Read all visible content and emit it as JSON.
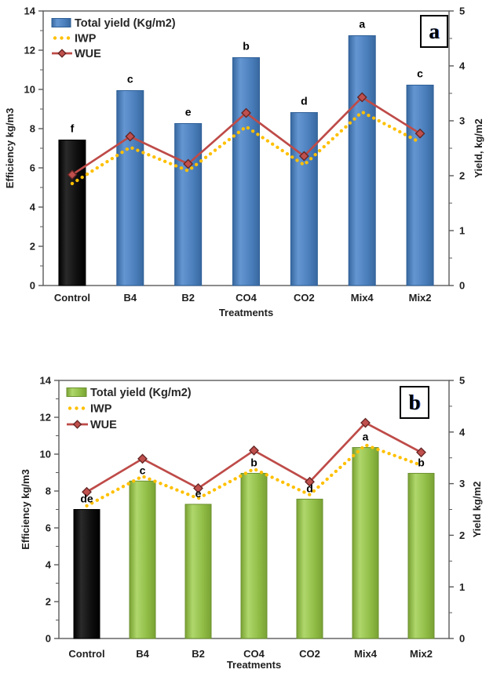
{
  "colors": {
    "blue_bar": {
      "dark": "#38689F",
      "light": "#6496D2",
      "main": "#4A7EBB",
      "stroke": "#2E5F97"
    },
    "green_bar": {
      "dark": "#79A233",
      "light": "#AFD76C",
      "main": "#8FBC45",
      "stroke": "#6C9130"
    },
    "black_bar": {
      "dark": "#000000",
      "light": "#2A2A2A",
      "main": "#0E0E0E",
      "stroke": "#000000"
    },
    "iwp_dots": "#FFC000",
    "wue_line": "#BE4B48",
    "wue_marker_fill": "#C0504D",
    "wue_marker_stroke": "#622423",
    "text": "#1F1F1F",
    "frame": "#5A5A5A"
  },
  "chart_data": [
    {
      "panel": "a",
      "corner_label": "a",
      "type": "bar+line combo",
      "categories": [
        "Control",
        "B4",
        "B2",
        "CO4",
        "CO2",
        "Mix4",
        "Mix2"
      ],
      "x_title": "Treatments",
      "left_axis": {
        "title": "Efficiency kg/m3",
        "range": [
          0,
          14
        ],
        "ticks": [
          0,
          2,
          4,
          6,
          8,
          10,
          12,
          14
        ],
        "minor_step": 1
      },
      "right_axis": {
        "title": "Yield, kg/m2",
        "range": [
          0,
          5
        ],
        "ticks": [
          0,
          1,
          2,
          3,
          4,
          5
        ],
        "minor_step": 0.5
      },
      "series": [
        {
          "name": "Total yield (Kg/m2)",
          "type": "bar",
          "axis": "right",
          "values": [
            2.65,
            3.55,
            2.95,
            4.15,
            3.15,
            4.55,
            3.65
          ],
          "note_first_bar_black": true,
          "palette": "blue"
        },
        {
          "name": "IWP",
          "type": "dotted_line",
          "axis": "left",
          "values": [
            5.2,
            7.05,
            5.85,
            8.1,
            6.15,
            8.85,
            7.3
          ]
        },
        {
          "name": "WUE",
          "type": "line_diamond",
          "axis": "left",
          "values": [
            5.65,
            7.6,
            6.2,
            8.8,
            6.6,
            9.6,
            7.75
          ]
        }
      ],
      "significance_letters": [
        "f",
        "c",
        "e",
        "b",
        "d",
        "a",
        "c"
      ],
      "legend_position": "top-left inside",
      "grid": "off"
    },
    {
      "panel": "b",
      "corner_label": "b",
      "type": "bar+line combo",
      "categories": [
        "Control",
        "B4",
        "B2",
        "CO4",
        "CO2",
        "Mix4",
        "Mix2"
      ],
      "x_title": "Treatments",
      "left_axis": {
        "title": "Efficiency kg/m3",
        "range": [
          0,
          14
        ],
        "ticks": [
          0,
          2,
          4,
          6,
          8,
          10,
          12,
          14
        ],
        "minor_step": 1
      },
      "right_axis": {
        "title": "Yield kg/m2",
        "range": [
          0,
          5
        ],
        "ticks": [
          0,
          1,
          2,
          3,
          4,
          5
        ],
        "minor_step": 0.5
      },
      "series": [
        {
          "name": "Total yield (Kg/m2)",
          "type": "bar",
          "axis": "right",
          "values": [
            2.5,
            3.05,
            2.6,
            3.2,
            2.7,
            3.7,
            3.2
          ],
          "note_first_bar_black": true,
          "palette": "green"
        },
        {
          "name": "IWP",
          "type": "dotted_line",
          "axis": "left",
          "values": [
            7.2,
            8.8,
            7.6,
            9.2,
            7.8,
            10.5,
            9.4
          ]
        },
        {
          "name": "WUE",
          "type": "line_diamond",
          "axis": "left",
          "values": [
            7.95,
            9.75,
            8.15,
            10.2,
            8.5,
            11.7,
            10.1
          ]
        }
      ],
      "significance_letters": [
        "de",
        "c",
        "e",
        "b",
        "d",
        "a",
        "b"
      ],
      "legend_position": "top-left inside",
      "grid": "off"
    }
  ]
}
